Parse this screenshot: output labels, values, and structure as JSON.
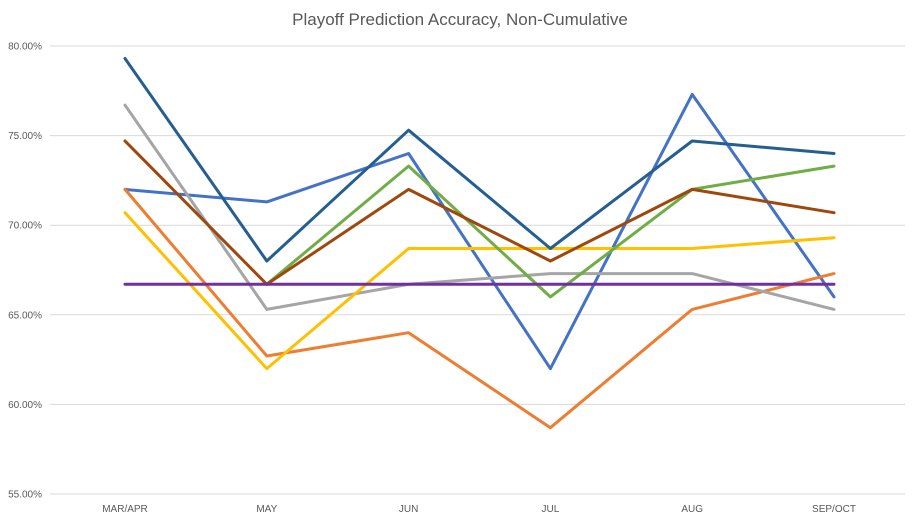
{
  "chart_data": {
    "type": "line",
    "title": "Playoff Prediction Accuracy, Non-Cumulative",
    "xlabel": "",
    "ylabel": "",
    "categories": [
      "MAR/APR",
      "MAY",
      "JUN",
      "JUL",
      "AUG",
      "SEP/OCT"
    ],
    "ylim": [
      0.55,
      0.8
    ],
    "yticks": [
      0.55,
      0.6,
      0.65,
      0.7,
      0.75,
      0.8
    ],
    "ytick_labels": [
      "55.00%",
      "60.00%",
      "65.00%",
      "70.00%",
      "75.00%",
      "80.00%"
    ],
    "grid": true,
    "legend": "none",
    "series": [
      {
        "color": "#4472c4",
        "values": [
          0.72,
          0.713,
          0.74,
          0.62,
          0.773,
          0.66
        ]
      },
      {
        "color": "#ed7d31",
        "values": [
          0.72,
          0.627,
          0.64,
          0.587,
          0.653,
          0.673
        ]
      },
      {
        "color": "#a5a5a5",
        "values": [
          0.767,
          0.653,
          0.667,
          0.673,
          0.673,
          0.653
        ]
      },
      {
        "color": "#ffc000",
        "values": [
          0.707,
          0.62,
          0.687,
          0.687,
          0.687,
          0.693
        ]
      },
      {
        "color": "#70ad47",
        "values": [
          null,
          0.667,
          0.733,
          0.66,
          0.72,
          0.733
        ]
      },
      {
        "color": "#255e91",
        "values": [
          0.793,
          0.68,
          0.753,
          0.687,
          0.747,
          0.74
        ]
      },
      {
        "color": "#9e480e",
        "values": [
          0.747,
          0.667,
          0.72,
          0.68,
          0.72,
          0.707
        ]
      },
      {
        "color": "#7030a0",
        "values": [
          0.667,
          0.667,
          0.667,
          0.667,
          0.667,
          0.667
        ]
      }
    ]
  }
}
